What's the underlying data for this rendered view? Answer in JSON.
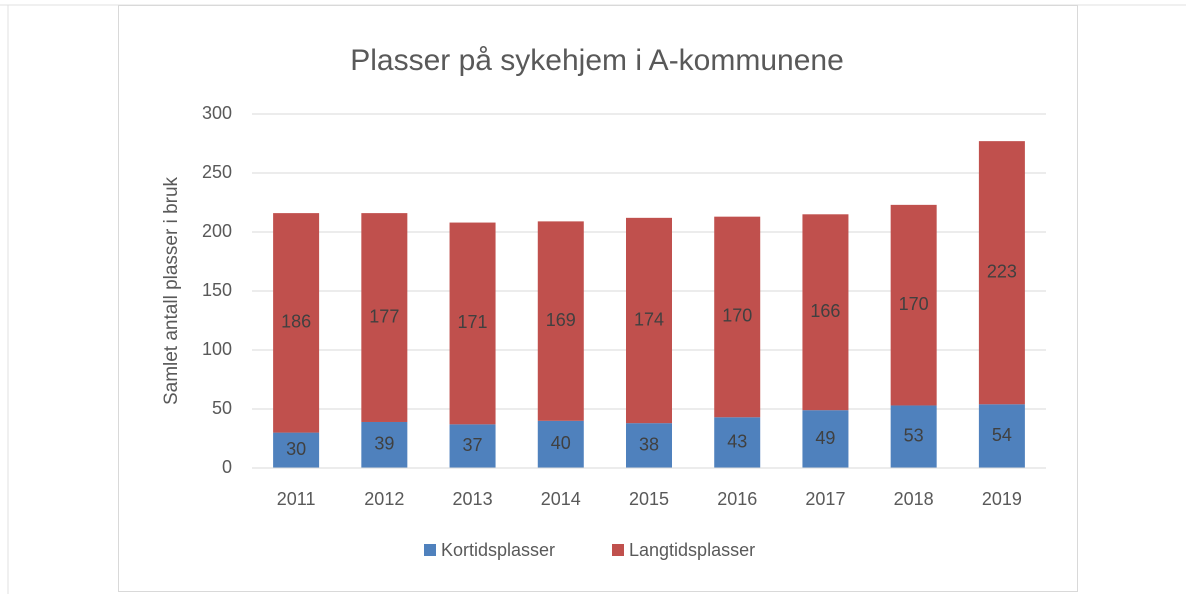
{
  "chart_data": {
    "type": "stacked_bar",
    "title": "Plasser på sykehjem i A-kommunene",
    "y_label": "Samlet antall plasser i bruk",
    "categories": [
      "2011",
      "2012",
      "2013",
      "2014",
      "2015",
      "2016",
      "2017",
      "2018",
      "2019"
    ],
    "series": [
      {
        "name": "Kortidsplasser",
        "color": "#4f81bd",
        "values": [
          30,
          39,
          37,
          40,
          38,
          43,
          49,
          53,
          54
        ]
      },
      {
        "name": "Langtidsplasser",
        "color": "#c0504d",
        "values": [
          186,
          177,
          171,
          169,
          174,
          170,
          166,
          170,
          223
        ]
      }
    ],
    "ylim": [
      0,
      300
    ],
    "yticks": [
      0,
      50,
      100,
      150,
      200,
      250,
      300
    ],
    "grid": true,
    "legend": "bottom"
  }
}
